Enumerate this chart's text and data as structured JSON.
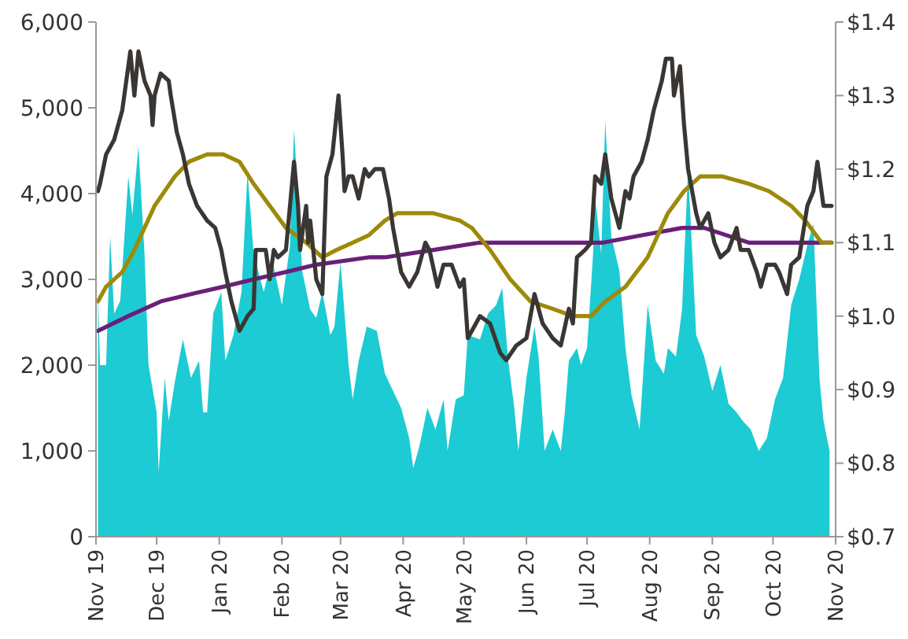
{
  "chart_data": {
    "type": "line",
    "xlim": [
      "2019-11-01",
      "2020-11-01"
    ],
    "xticks": [
      {
        "value": "2019-11-01",
        "label": "Nov 19"
      },
      {
        "value": "2019-12-01",
        "label": "Dec 19"
      },
      {
        "value": "2020-01-01",
        "label": "Jan 20"
      },
      {
        "value": "2020-02-01",
        "label": "Feb 20"
      },
      {
        "value": "2020-03-01",
        "label": "Mar 20"
      },
      {
        "value": "2020-04-01",
        "label": "Apr 20"
      },
      {
        "value": "2020-05-01",
        "label": "May 20"
      },
      {
        "value": "2020-06-01",
        "label": "Jun 20"
      },
      {
        "value": "2020-07-01",
        "label": "Jul 20"
      },
      {
        "value": "2020-08-01",
        "label": "Aug 20"
      },
      {
        "value": "2020-09-01",
        "label": "Sep 20"
      },
      {
        "value": "2020-10-01",
        "label": "Oct 20"
      },
      {
        "value": "2020-11-01",
        "label": "Nov 20"
      }
    ],
    "ylim": [
      0,
      6000
    ],
    "yticks": [
      0,
      {
        "value": 1000,
        "label": "1,000"
      },
      {
        "value": 2000,
        "label": "2,000"
      },
      {
        "value": 3000,
        "label": "3,000"
      },
      {
        "value": 4000,
        "label": "4,000"
      },
      {
        "value": 5000,
        "label": "5,000"
      },
      {
        "value": 6000,
        "label": "6,000"
      }
    ],
    "y2lim": [
      0.7,
      1.4
    ],
    "y2ticks": [
      {
        "value": 0.7,
        "label": "$0.7"
      },
      {
        "value": 0.8,
        "label": "$0.8"
      },
      {
        "value": 0.9,
        "label": "$0.9"
      },
      {
        "value": 1.0,
        "label": "$1.0"
      },
      {
        "value": 1.1,
        "label": "$1.1"
      },
      {
        "value": 1.2,
        "label": "$1.2"
      },
      {
        "value": 1.3,
        "label": "$1.3"
      },
      {
        "value": 1.4,
        "label": "$1.4"
      }
    ],
    "grid": false,
    "series": [
      {
        "type": "area",
        "color": "#1ccbd3",
        "x": [
          "2019-11-02",
          "2019-11-03",
          "2019-11-06",
          "2019-11-08",
          "2019-11-10",
          "2019-11-13",
          "2019-11-17",
          "2019-11-19",
          "2019-11-22",
          "2019-11-25",
          "2019-11-27",
          "2019-12-01",
          "2019-12-02",
          "2019-12-05",
          "2019-12-07",
          "2019-12-10",
          "2019-12-14",
          "2019-12-18",
          "2019-12-22",
          "2019-12-24",
          "2019-12-26",
          "2019-12-29",
          "2020-01-02",
          "2020-01-04",
          "2020-01-08",
          "2020-01-12",
          "2020-01-15",
          "2020-01-18",
          "2020-01-23",
          "2020-01-27",
          "2020-02-01",
          "2020-02-05",
          "2020-02-07",
          "2020-02-09",
          "2020-02-11",
          "2020-02-15",
          "2020-02-18",
          "2020-02-21",
          "2020-02-25",
          "2020-02-27",
          "2020-03-01",
          "2020-03-05",
          "2020-03-07",
          "2020-03-10",
          "2020-03-14",
          "2020-03-19",
          "2020-03-23",
          "2020-03-27",
          "2020-03-31",
          "2020-04-04",
          "2020-04-06",
          "2020-04-09",
          "2020-04-13",
          "2020-04-17",
          "2020-04-21",
          "2020-04-23",
          "2020-04-27",
          "2020-05-01",
          "2020-05-03",
          "2020-05-09",
          "2020-05-13",
          "2020-05-17",
          "2020-05-20",
          "2020-05-23",
          "2020-05-26",
          "2020-05-28",
          "2020-06-01",
          "2020-06-05",
          "2020-06-07",
          "2020-06-10",
          "2020-06-14",
          "2020-06-18",
          "2020-06-20",
          "2020-06-22",
          "2020-06-26",
          "2020-06-28",
          "2020-07-01",
          "2020-07-04",
          "2020-07-05",
          "2020-07-08",
          "2020-07-10",
          "2020-07-13",
          "2020-07-17",
          "2020-07-20",
          "2020-07-23",
          "2020-07-27",
          "2020-07-31",
          "2020-08-04",
          "2020-08-08",
          "2020-08-10",
          "2020-08-14",
          "2020-08-17",
          "2020-08-20",
          "2020-08-24",
          "2020-08-28",
          "2020-09-01",
          "2020-09-05",
          "2020-09-09",
          "2020-09-13",
          "2020-09-16",
          "2020-09-20",
          "2020-09-24",
          "2020-09-28",
          "2020-10-02",
          "2020-10-06",
          "2020-10-10",
          "2020-10-14",
          "2020-10-18",
          "2020-10-21",
          "2020-10-24",
          "2020-10-26",
          "2020-10-29"
        ],
        "values": [
          2850,
          2000,
          2000,
          3500,
          2600,
          2750,
          4200,
          3750,
          4550,
          3300,
          2000,
          1450,
          750,
          1850,
          1350,
          1800,
          2300,
          1850,
          2050,
          1450,
          1450,
          2600,
          2850,
          2050,
          2350,
          2850,
          4250,
          3300,
          2850,
          3250,
          2700,
          3400,
          4750,
          3950,
          3100,
          2650,
          2550,
          2850,
          2350,
          2450,
          3200,
          2000,
          1600,
          2050,
          2450,
          2400,
          1900,
          1700,
          1500,
          1150,
          800,
          1050,
          1500,
          1250,
          1600,
          1000,
          1600,
          1650,
          2350,
          2300,
          2600,
          2700,
          2900,
          2050,
          1500,
          1000,
          1850,
          2450,
          2100,
          1000,
          1250,
          1000,
          1450,
          2050,
          2200,
          2000,
          2200,
          3300,
          3950,
          3300,
          4850,
          3500,
          3100,
          2200,
          1650,
          1250,
          2700,
          2050,
          1900,
          2200,
          2100,
          2650,
          4300,
          2350,
          2100,
          1700,
          2000,
          1550,
          1450,
          1350,
          1250,
          1000,
          1150,
          1600,
          1850,
          2700,
          3000,
          3400,
          3650,
          1850,
          1350,
          1000
        ]
      },
      {
        "type": "line",
        "axis": "y2",
        "color": "#6a1f7a",
        "x": [
          "2019-11-02",
          "2019-11-17",
          "2019-12-03",
          "2019-12-18",
          "2020-01-03",
          "2020-01-18",
          "2020-02-03",
          "2020-02-18",
          "2020-03-15",
          "2020-03-23",
          "2020-04-16",
          "2020-05-09",
          "2020-06-01",
          "2020-06-24",
          "2020-07-09",
          "2020-07-28",
          "2020-08-17",
          "2020-08-28",
          "2020-09-19",
          "2020-10-10",
          "2020-10-30"
        ],
        "values": [
          0.98,
          1.0,
          1.02,
          1.03,
          1.04,
          1.05,
          1.06,
          1.07,
          1.08,
          1.08,
          1.09,
          1.1,
          1.1,
          1.1,
          1.1,
          1.11,
          1.12,
          1.12,
          1.1,
          1.1,
          1.1
        ]
      },
      {
        "type": "line",
        "axis": "y2",
        "color": "#9e8a0a",
        "x": [
          "2019-11-02",
          "2019-11-06",
          "2019-11-14",
          "2019-11-20",
          "2019-11-25",
          "2019-11-30",
          "2019-12-05",
          "2019-12-10",
          "2019-12-17",
          "2019-12-26",
          "2020-01-03",
          "2020-01-11",
          "2020-01-18",
          "2020-01-26",
          "2020-02-03",
          "2020-02-13",
          "2020-02-21",
          "2020-02-28",
          "2020-03-07",
          "2020-03-15",
          "2020-03-23",
          "2020-03-29",
          "2020-04-16",
          "2020-04-29",
          "2020-05-05",
          "2020-05-14",
          "2020-05-24",
          "2020-06-03",
          "2020-06-14",
          "2020-06-24",
          "2020-07-03",
          "2020-07-10",
          "2020-07-20",
          "2020-07-31",
          "2020-08-10",
          "2020-08-18",
          "2020-08-26",
          "2020-09-06",
          "2020-09-19",
          "2020-09-29",
          "2020-10-10",
          "2020-10-17",
          "2020-10-25",
          "2020-10-30"
        ],
        "values": [
          1.02,
          1.04,
          1.06,
          1.09,
          1.12,
          1.15,
          1.17,
          1.19,
          1.21,
          1.22,
          1.22,
          1.21,
          1.18,
          1.15,
          1.12,
          1.1,
          1.08,
          1.09,
          1.1,
          1.11,
          1.13,
          1.14,
          1.14,
          1.13,
          1.12,
          1.09,
          1.05,
          1.02,
          1.01,
          1.0,
          1.0,
          1.02,
          1.04,
          1.08,
          1.14,
          1.17,
          1.19,
          1.19,
          1.18,
          1.17,
          1.15,
          1.13,
          1.1,
          1.1
        ]
      },
      {
        "axis": "y2",
        "color": "#3a3633",
        "x": [
          "2019-11-02",
          "2019-11-03",
          "2019-11-06",
          "2019-11-10",
          "2019-11-14",
          "2019-11-18",
          "2019-11-20",
          "2019-11-22",
          "2019-11-25",
          "2019-11-28",
          "2019-11-29",
          "2019-11-30",
          "2019-12-03",
          "2019-12-07",
          "2019-12-08",
          "2019-12-11",
          "2019-12-14",
          "2019-12-17",
          "2019-12-21",
          "2019-12-26",
          "2019-12-30",
          "2020-01-02",
          "2020-01-04",
          "2020-01-07",
          "2020-01-11",
          "2020-01-15",
          "2020-01-18",
          "2020-01-19",
          "2020-01-24",
          "2020-01-26",
          "2020-01-28",
          "2020-01-30",
          "2020-02-03",
          "2020-02-05",
          "2020-02-07",
          "2020-02-09",
          "2020-02-10",
          "2020-02-13",
          "2020-02-14",
          "2020-02-15",
          "2020-02-18",
          "2020-02-21",
          "2020-02-23",
          "2020-02-26",
          "2020-02-29",
          "2020-03-02",
          "2020-03-03",
          "2020-03-05",
          "2020-03-07",
          "2020-03-10",
          "2020-03-13",
          "2020-03-15",
          "2020-03-18",
          "2020-03-22",
          "2020-03-25",
          "2020-03-27",
          "2020-03-29",
          "2020-03-31",
          "2020-04-04",
          "2020-04-08",
          "2020-04-12",
          "2020-04-14",
          "2020-04-18",
          "2020-04-21",
          "2020-04-25",
          "2020-04-29",
          "2020-05-01",
          "2020-05-03",
          "2020-05-09",
          "2020-05-14",
          "2020-05-19",
          "2020-05-22",
          "2020-05-27",
          "2020-06-01",
          "2020-06-05",
          "2020-06-09",
          "2020-06-14",
          "2020-06-18",
          "2020-06-22",
          "2020-06-24",
          "2020-06-26",
          "2020-06-30",
          "2020-07-03",
          "2020-07-05",
          "2020-07-08",
          "2020-07-10",
          "2020-07-13",
          "2020-07-17",
          "2020-07-20",
          "2020-07-22",
          "2020-07-24",
          "2020-07-28",
          "2020-07-31",
          "2020-08-03",
          "2020-08-07",
          "2020-08-09",
          "2020-08-12",
          "2020-08-13",
          "2020-08-16",
          "2020-08-18",
          "2020-08-20",
          "2020-08-24",
          "2020-08-26",
          "2020-08-30",
          "2020-09-02",
          "2020-09-05",
          "2020-09-09",
          "2020-09-13",
          "2020-09-15",
          "2020-09-19",
          "2020-09-23",
          "2020-09-25",
          "2020-09-28",
          "2020-10-02",
          "2020-10-04",
          "2020-10-08",
          "2020-10-10",
          "2020-10-14",
          "2020-10-18",
          "2020-10-21",
          "2020-10-23",
          "2020-10-26",
          "2020-10-29",
          "2020-10-30"
        ],
        "values": [
          1.17,
          1.18,
          1.22,
          1.24,
          1.28,
          1.36,
          1.3,
          1.36,
          1.32,
          1.3,
          1.26,
          1.3,
          1.33,
          1.32,
          1.3,
          1.25,
          1.22,
          1.18,
          1.15,
          1.13,
          1.12,
          1.09,
          1.06,
          1.02,
          0.98,
          1.0,
          1.01,
          1.09,
          1.09,
          1.05,
          1.09,
          1.08,
          1.09,
          1.15,
          1.21,
          1.15,
          1.09,
          1.15,
          1.1,
          1.13,
          1.05,
          1.03,
          1.19,
          1.22,
          1.3,
          1.22,
          1.17,
          1.19,
          1.19,
          1.16,
          1.2,
          1.19,
          1.2,
          1.2,
          1.16,
          1.12,
          1.09,
          1.06,
          1.04,
          1.06,
          1.1,
          1.09,
          1.04,
          1.07,
          1.07,
          1.04,
          1.05,
          0.97,
          1.0,
          0.99,
          0.95,
          0.94,
          0.96,
          0.97,
          1.03,
          0.99,
          0.97,
          0.96,
          1.01,
          0.99,
          1.08,
          1.09,
          1.1,
          1.19,
          1.18,
          1.22,
          1.16,
          1.12,
          1.17,
          1.16,
          1.19,
          1.21,
          1.24,
          1.28,
          1.32,
          1.35,
          1.35,
          1.3,
          1.34,
          1.26,
          1.2,
          1.14,
          1.12,
          1.14,
          1.1,
          1.08,
          1.09,
          1.12,
          1.09,
          1.09,
          1.06,
          1.04,
          1.07,
          1.07,
          1.06,
          1.03,
          1.07,
          1.08,
          1.15,
          1.17,
          1.21,
          1.15,
          1.15,
          1.15
        ]
      }
    ]
  }
}
